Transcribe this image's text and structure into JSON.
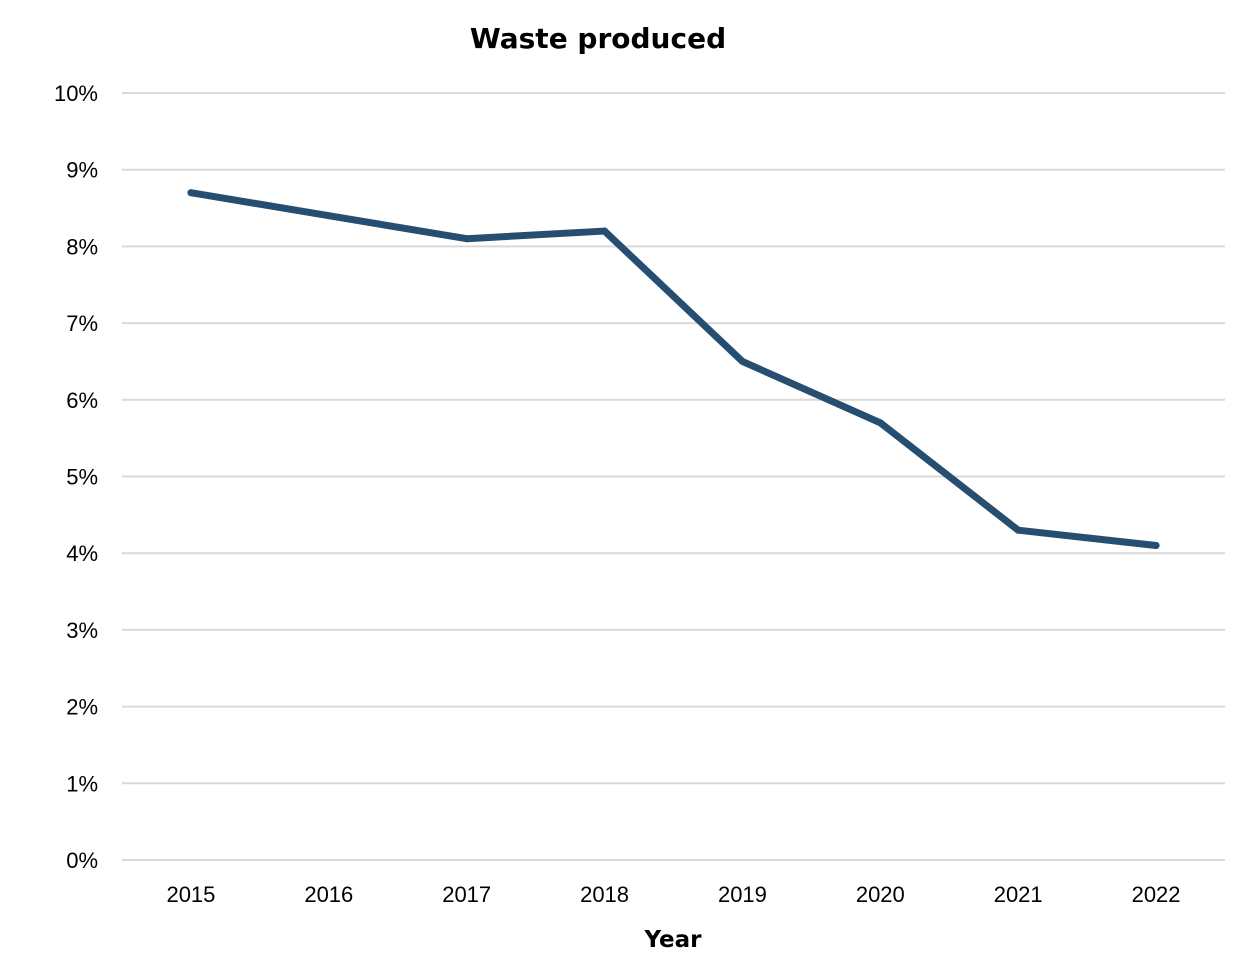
{
  "chart_data": {
    "type": "line",
    "title": "Waste produced",
    "xlabel": "Year",
    "ylabel": "",
    "categories": [
      "2015",
      "2016",
      "2017",
      "2018",
      "2019",
      "2020",
      "2021",
      "2022"
    ],
    "series": [
      {
        "values": [
          8.7,
          8.4,
          8.1,
          8.2,
          6.5,
          5.7,
          4.3,
          4.1
        ],
        "color": "#264e70"
      }
    ],
    "ylim": [
      0,
      10
    ],
    "yticks": [
      0,
      1,
      2,
      3,
      4,
      5,
      6,
      7,
      8,
      9,
      10
    ],
    "ytick_labels": [
      "0%",
      "1%",
      "2%",
      "3%",
      "4%",
      "5%",
      "6%",
      "7%",
      "8%",
      "9%",
      "10%"
    ],
    "grid": true,
    "legend": "none"
  }
}
